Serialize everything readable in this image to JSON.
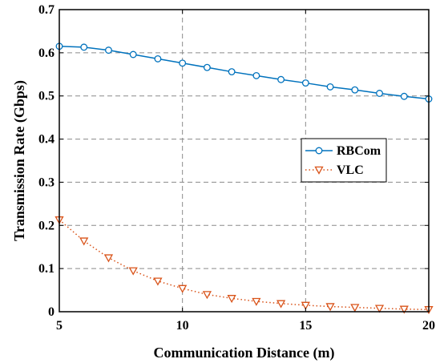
{
  "chart_data": {
    "type": "line",
    "xlabel": "Communication Distance (m)",
    "ylabel": "Transmission Rate (Gbps)",
    "xlim": [
      5,
      20
    ],
    "ylim": [
      0,
      0.7
    ],
    "xticks": [
      5,
      10,
      15,
      20
    ],
    "yticks": [
      0,
      0.1,
      0.2,
      0.3,
      0.4,
      0.5,
      0.6,
      0.7
    ],
    "grid": true,
    "legend_position": "right",
    "series": [
      {
        "name": "RBCom",
        "color": "#0072BD",
        "marker": "circle",
        "line_style": "solid",
        "x": [
          5,
          6,
          7,
          8,
          9,
          10,
          11,
          12,
          13,
          14,
          15,
          16,
          17,
          18,
          19,
          20
        ],
        "values": [
          0.615,
          0.613,
          0.606,
          0.596,
          0.586,
          0.576,
          0.566,
          0.556,
          0.547,
          0.538,
          0.53,
          0.521,
          0.514,
          0.506,
          0.499,
          0.493
        ]
      },
      {
        "name": "VLC",
        "color": "#D95319",
        "marker": "triangle-down",
        "line_style": "dotted",
        "x": [
          5,
          6,
          7,
          8,
          9,
          10,
          11,
          12,
          13,
          14,
          15,
          16,
          17,
          18,
          19,
          20
        ],
        "values": [
          0.213,
          0.164,
          0.125,
          0.095,
          0.071,
          0.054,
          0.04,
          0.031,
          0.024,
          0.019,
          0.015,
          0.012,
          0.01,
          0.008,
          0.006,
          0.005
        ]
      }
    ]
  }
}
